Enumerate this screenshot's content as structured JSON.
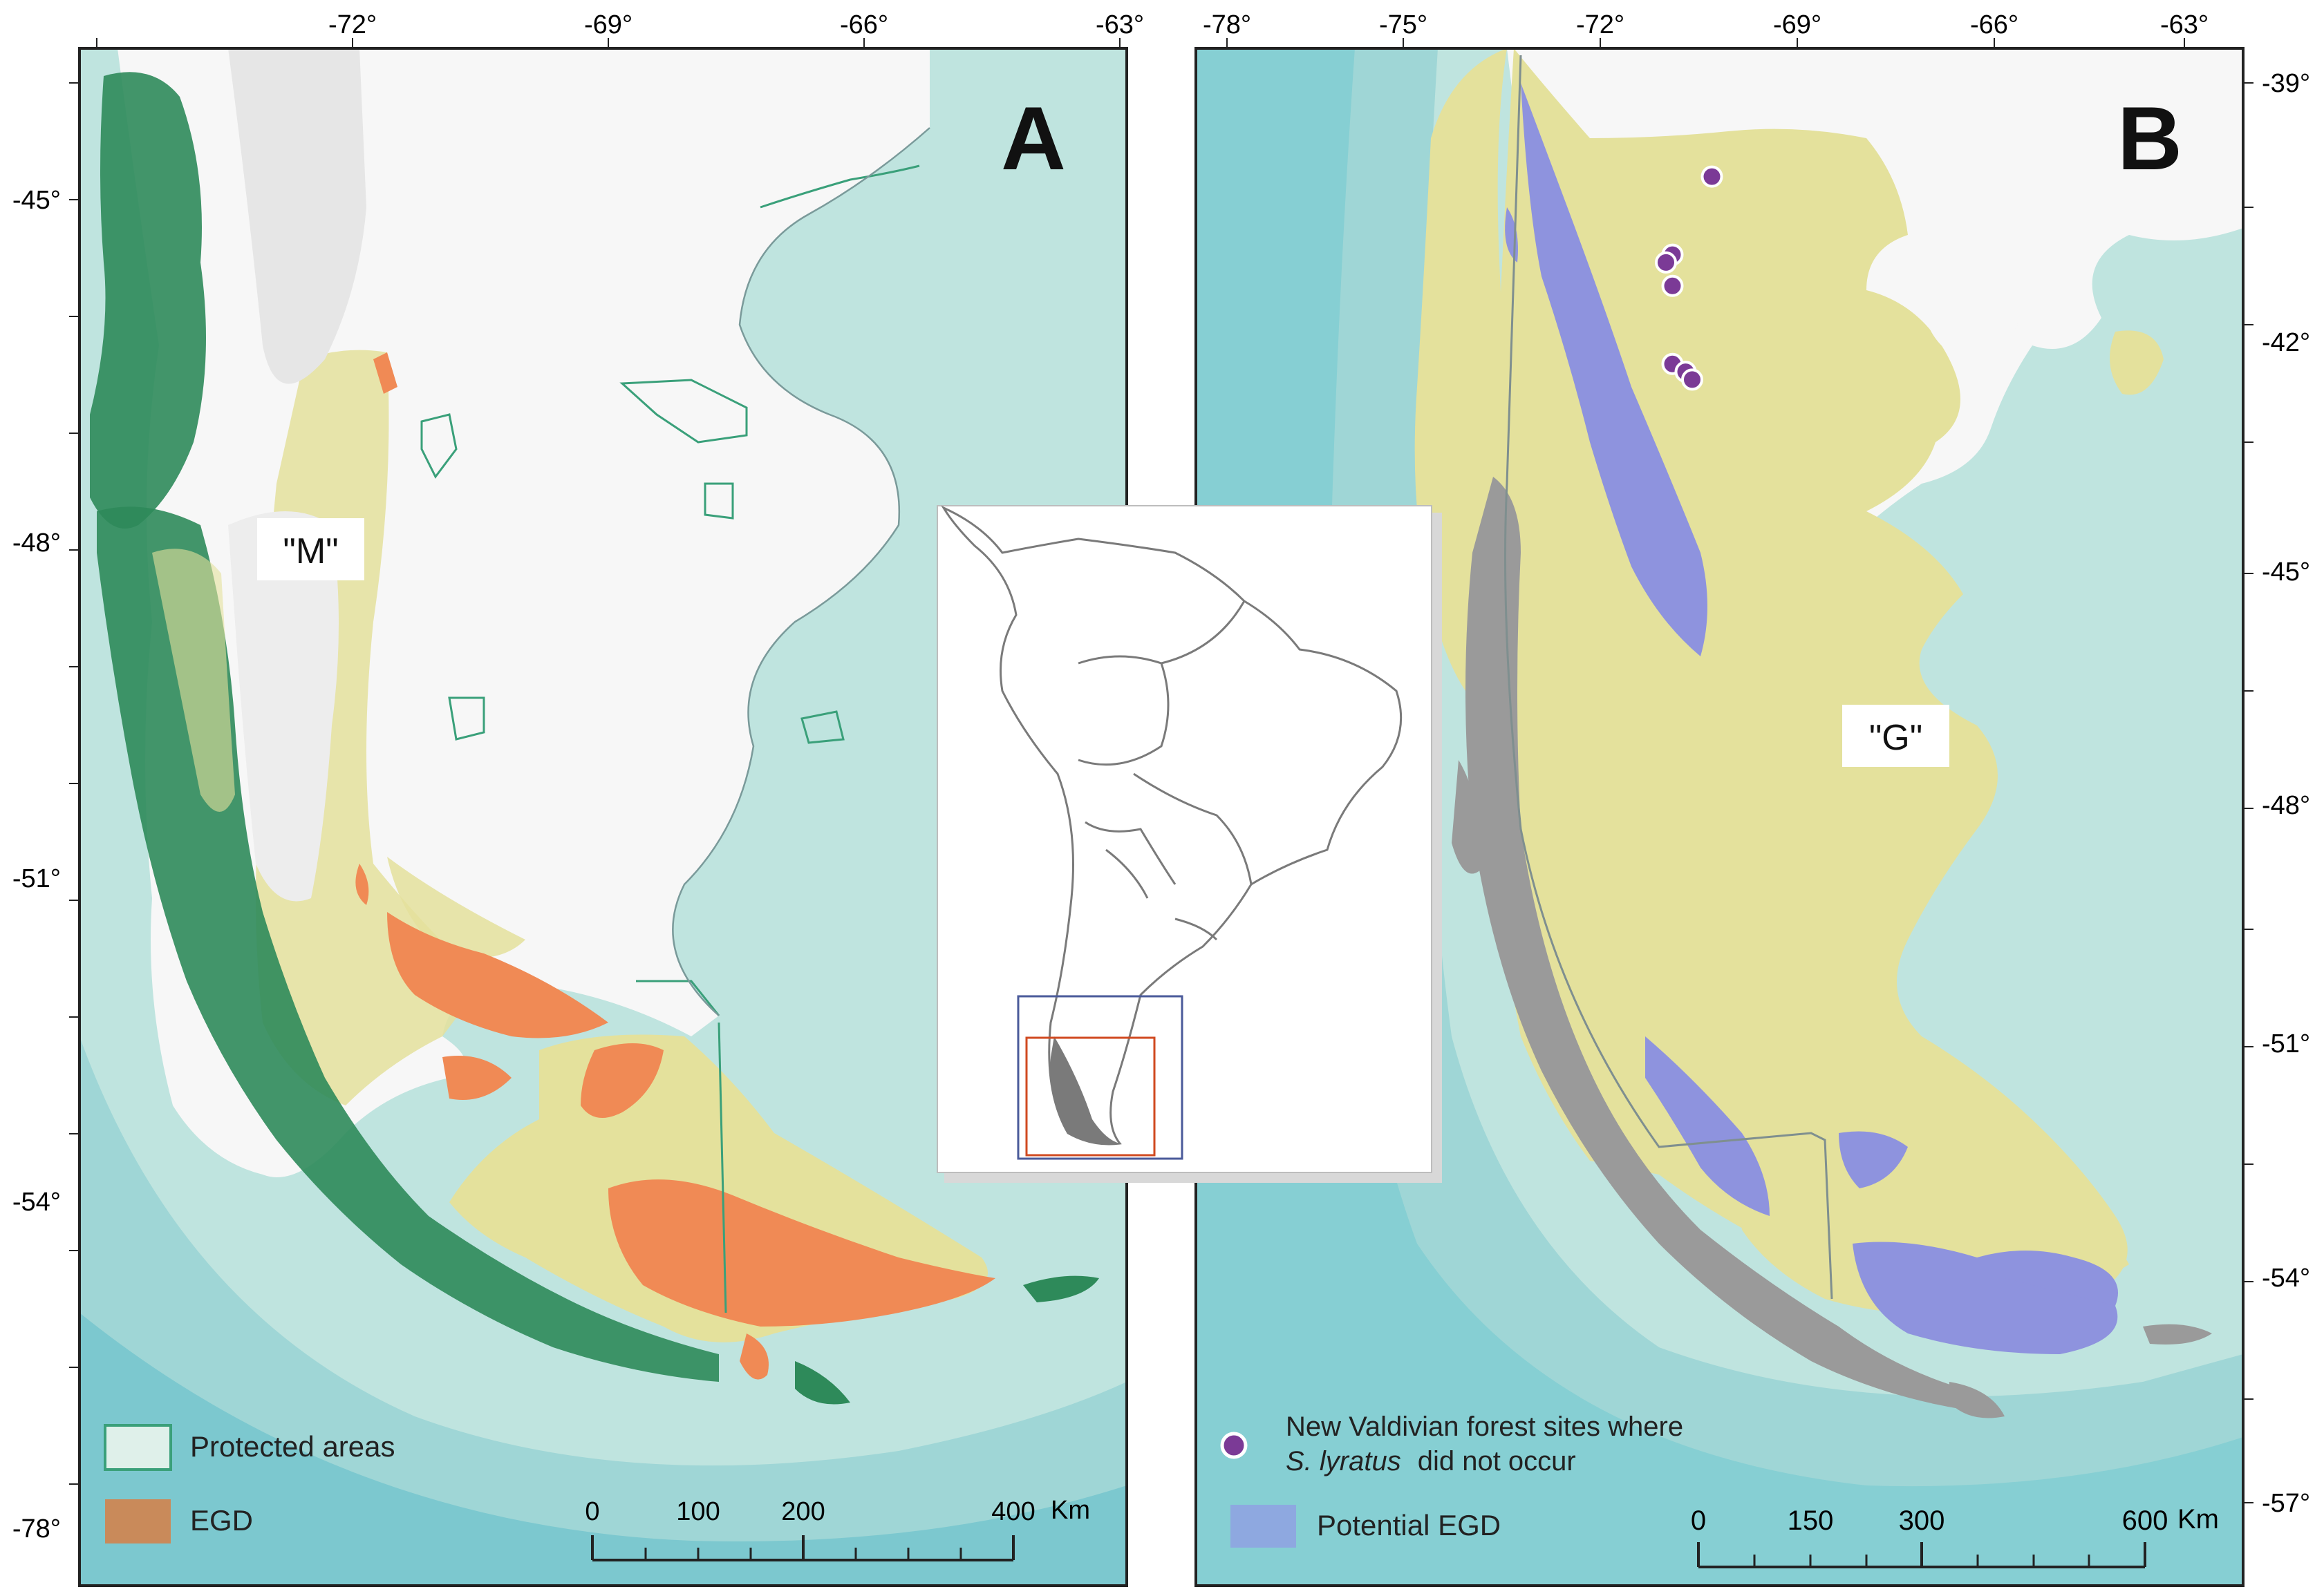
{
  "panel_a": {
    "letter": "A",
    "region_label": "\"M\"",
    "top_ticks": [
      "-72°",
      "-69°",
      "-66°",
      "-63°"
    ],
    "left_ticks": [
      "-45°",
      "-48°",
      "-51°",
      "-54°",
      "-78°"
    ],
    "legend": [
      {
        "label": "Protected areas",
        "swatch": "protected-areas"
      },
      {
        "label": "EGD",
        "swatch": "egd"
      }
    ],
    "scale": {
      "ticks": [
        "0",
        "100",
        "200",
        "400"
      ],
      "unit": "Km"
    }
  },
  "panel_b": {
    "letter": "B",
    "region_label": "\"G\"",
    "top_ticks": [
      "-78°",
      "-75°",
      "-72°",
      "-69°",
      "-66°",
      "-63°"
    ],
    "right_ticks": [
      "-39°",
      "-42°",
      "-45°",
      "-48°",
      "-51°",
      "-54°",
      "-57°"
    ],
    "legend_sites_line1": "New Valdivian forest sites where",
    "legend_sites_species": "S. lyratus",
    "legend_sites_line2": "did not occur",
    "legend_egd": "Potential EGD",
    "scale": {
      "ticks": [
        "0",
        "150",
        "300",
        "600"
      ],
      "unit": "Km"
    },
    "sites": [
      {
        "lon": -70.3,
        "lat": -40.2
      },
      {
        "lon": -70.9,
        "lat": -41.2
      },
      {
        "lon": -71.0,
        "lat": -41.3
      },
      {
        "lon": -70.9,
        "lat": -41.6
      },
      {
        "lon": -70.9,
        "lat": -42.6
      },
      {
        "lon": -70.7,
        "lat": -42.7
      },
      {
        "lon": -70.6,
        "lat": -42.8
      }
    ]
  },
  "colors": {
    "ocean": "#bfe4df",
    "ocean_deep": "#86cfd3",
    "land": "#f7f7f7",
    "steppe": "#e4e19c",
    "forest": "#2e8a5a",
    "forest_gray": "#9a9a9a",
    "egd": "#f08a55",
    "potential_egd": "#8e93de",
    "site": "#7b3a96"
  }
}
